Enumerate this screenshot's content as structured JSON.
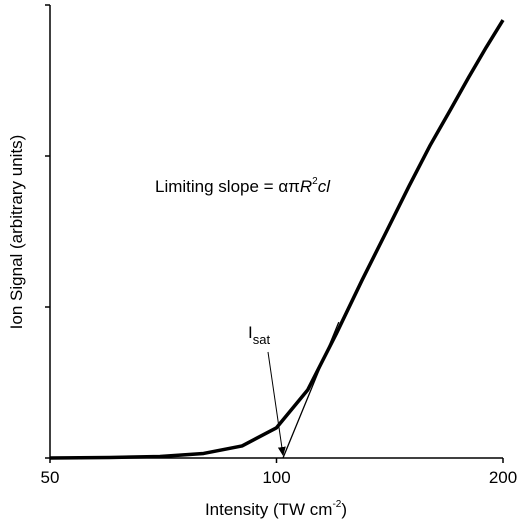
{
  "chart_data": {
    "type": "line",
    "x_label": [
      "Intensity (TW cm",
      "-2",
      ")"
    ],
    "y_label": "Ion Signal (arbitrary units)",
    "x_log": true,
    "xlim": [
      50,
      200
    ],
    "xticks": [
      50,
      100,
      200
    ],
    "ylim": [
      0,
      3
    ],
    "yticks": [
      0,
      1,
      2,
      3
    ],
    "series": [
      {
        "color": "#000000",
        "x": [
          50,
          60,
          70,
          80,
          90,
          100,
          110,
          120,
          130,
          140,
          150,
          160,
          170,
          180,
          190,
          200
        ],
        "values": [
          0,
          0.003,
          0.01,
          0.03,
          0.08,
          0.2,
          0.45,
          0.82,
          1.18,
          1.5,
          1.8,
          2.07,
          2.3,
          2.52,
          2.72,
          2.9
        ]
      },
      {
        "color": "#000000",
        "x": [
          102,
          121
        ],
        "values": [
          0,
          0.9
        ]
      }
    ],
    "annotations": {
      "slope": [
        "Limiting slope = απ",
        "R",
        "2",
        "cl"
      ],
      "isat": [
        "I",
        "sat"
      ]
    }
  }
}
